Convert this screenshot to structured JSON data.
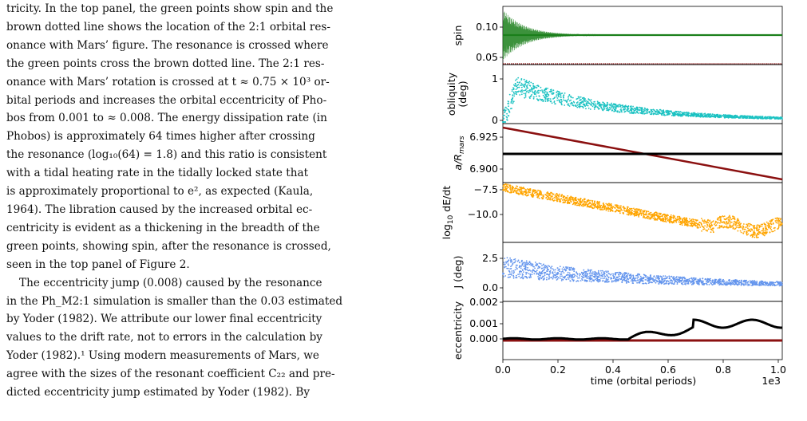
{
  "paper": {
    "lines_p1": [
      "tricity. In the top panel, the green points show spin and the",
      "brown dotted line shows the location of the 2:1 orbital res-",
      "onance with Mars’ figure. The resonance is crossed where",
      "the green points cross the brown dotted line. The 2:1 res-",
      "onance with Mars’ rotation is crossed at t ≈ 0.75 × 10³ or-",
      "bital periods and increases the orbital eccentricity of Pho-",
      "bos from 0.001 to ≈ 0.008. The energy dissipation rate (in",
      "Phobos) is approximately 64 times higher after crossing",
      "the resonance (log₁₀(64) = 1.8) and this ratio is consistent",
      "with a tidal heating rate in the tidally locked state that",
      "is approximately proportional to e², as expected (Kaula,",
      "1964). The libration caused by the increased orbital ec-",
      "centricity is evident as a thickening in the breadth of the",
      "green points, showing spin, after the resonance is crossed,",
      "seen in the top panel of Figure 2."
    ],
    "lines_p2": [
      "The eccentricity jump (0.008) caused by the resonance",
      "in the Ph_M2:1 simulation is smaller than the 0.03 estimated",
      "by Yoder (1982). We attribute our lower final eccentricity",
      "values to the drift rate, not to errors in the calculation by",
      "Yoder (1982).¹ Using modern measurements of Mars, we",
      "agree with the sizes of the resonant coefficient C₂₂ and pre-",
      "dicted eccentricity jump estimated by Yoder (1982). By"
    ]
  },
  "figure": {
    "x_axis": {
      "label": "time (orbital periods)",
      "multiplier": "1e3",
      "ticks": [
        "0.0",
        "0.2",
        "0.4",
        "0.6",
        "0.8",
        "1.0"
      ]
    },
    "panels": [
      {
        "name": "spin",
        "ylabel": "spin",
        "ticks": [
          "0.10",
          "0.05"
        ],
        "color": "#1a7f1a"
      },
      {
        "name": "obliquity",
        "ylabel": "obliquity (deg)",
        "ticks": [
          "1",
          "0"
        ],
        "color": "#1cc2c2"
      },
      {
        "name": "semi-major-axis",
        "ylabel": "a/R_mars",
        "ticks": [
          "6.925",
          "6.900"
        ],
        "color": "#8b1010"
      },
      {
        "name": "dissipation",
        "ylabel": "log10 dE/dt",
        "ticks": [
          "−7.5",
          "−10.0"
        ],
        "color": "#ffa500"
      },
      {
        "name": "inclination",
        "ylabel": "J (deg)",
        "ticks": [
          "2.5",
          "0.0"
        ],
        "color": "#6495ed"
      },
      {
        "name": "eccentricity",
        "ylabel": "eccentricity",
        "ticks": [
          "0.002",
          "0.001",
          "0.000"
        ],
        "color": "#000000"
      }
    ]
  }
}
